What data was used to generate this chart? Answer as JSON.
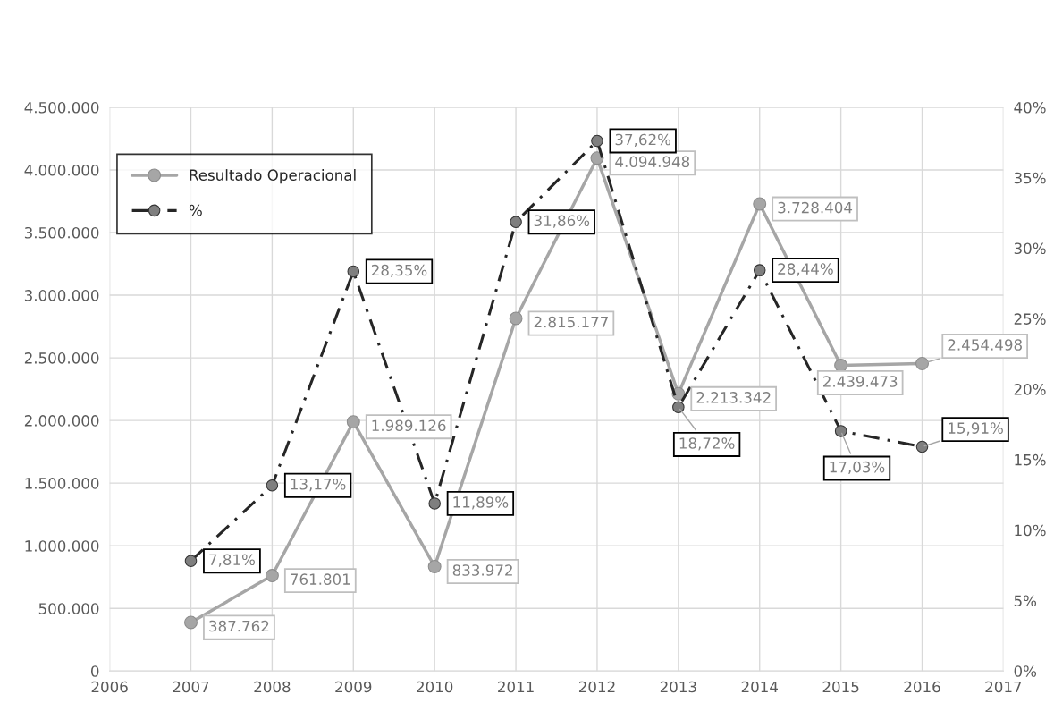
{
  "chart_data": {
    "type": "line",
    "x": [
      2007,
      2008,
      2009,
      2010,
      2011,
      2012,
      2013,
      2014,
      2015,
      2016
    ],
    "series": [
      {
        "name": "Resultado Operacional",
        "color": "#a6a6a6",
        "marker": "circle",
        "line_style": "solid",
        "values": [
          387762,
          761801,
          1989126,
          833972,
          2815177,
          4094948,
          2213342,
          3728404,
          2439473,
          2454498
        ],
        "value_labels": [
          "387.762",
          "761.801",
          "1.989.126",
          "833.972",
          "2.815.177",
          "4.094.948",
          "2.213.342",
          "3.728.404",
          "2.439.473",
          "2.454.498"
        ]
      },
      {
        "name": "%",
        "color": "#262626",
        "marker": "circle",
        "line_style": "dashed",
        "axis": "y2",
        "values": [
          7.81,
          13.17,
          28.35,
          11.89,
          31.86,
          37.62,
          18.72,
          28.44,
          17.03,
          15.91
        ],
        "value_labels": [
          "7,81%",
          "13,17%",
          "28,35%",
          "11,89%",
          "31,86%",
          "37,62%",
          "18,72%",
          "28,44%",
          "17,03%",
          "15,91%"
        ]
      }
    ],
    "xlim": [
      2006,
      2017
    ],
    "xticks": [
      2006,
      2007,
      2008,
      2009,
      2010,
      2011,
      2012,
      2013,
      2014,
      2015,
      2016,
      2017
    ],
    "ylim": [
      0,
      4500000
    ],
    "yticks": [
      0,
      {
        "value": 500000,
        "label": "500.000"
      },
      {
        "value": 1000000,
        "label": "1.000.000"
      },
      {
        "value": 1500000,
        "label": "1.500.000"
      },
      {
        "value": 2000000,
        "label": "2.000.000"
      },
      {
        "value": 2500000,
        "label": "2.500.000"
      },
      {
        "value": 3000000,
        "label": "3.000.000"
      },
      {
        "value": 3500000,
        "label": "3.500.000"
      },
      {
        "value": 4000000,
        "label": "4.000.000"
      },
      {
        "value": 4500000,
        "label": "4.500.000"
      }
    ],
    "y2lim": [
      0,
      40
    ],
    "y2ticks": [
      {
        "value": 0,
        "label": "0%"
      },
      {
        "value": 5,
        "label": "5%"
      },
      {
        "value": 10,
        "label": "10%"
      },
      {
        "value": 15,
        "label": "15%"
      },
      {
        "value": 20,
        "label": "20%"
      },
      {
        "value": 25,
        "label": "25%"
      },
      {
        "value": 30,
        "label": "30%"
      },
      {
        "value": 35,
        "label": "35%"
      },
      {
        "value": 40,
        "label": "40%"
      }
    ],
    "grid": true,
    "legend": "top left"
  }
}
